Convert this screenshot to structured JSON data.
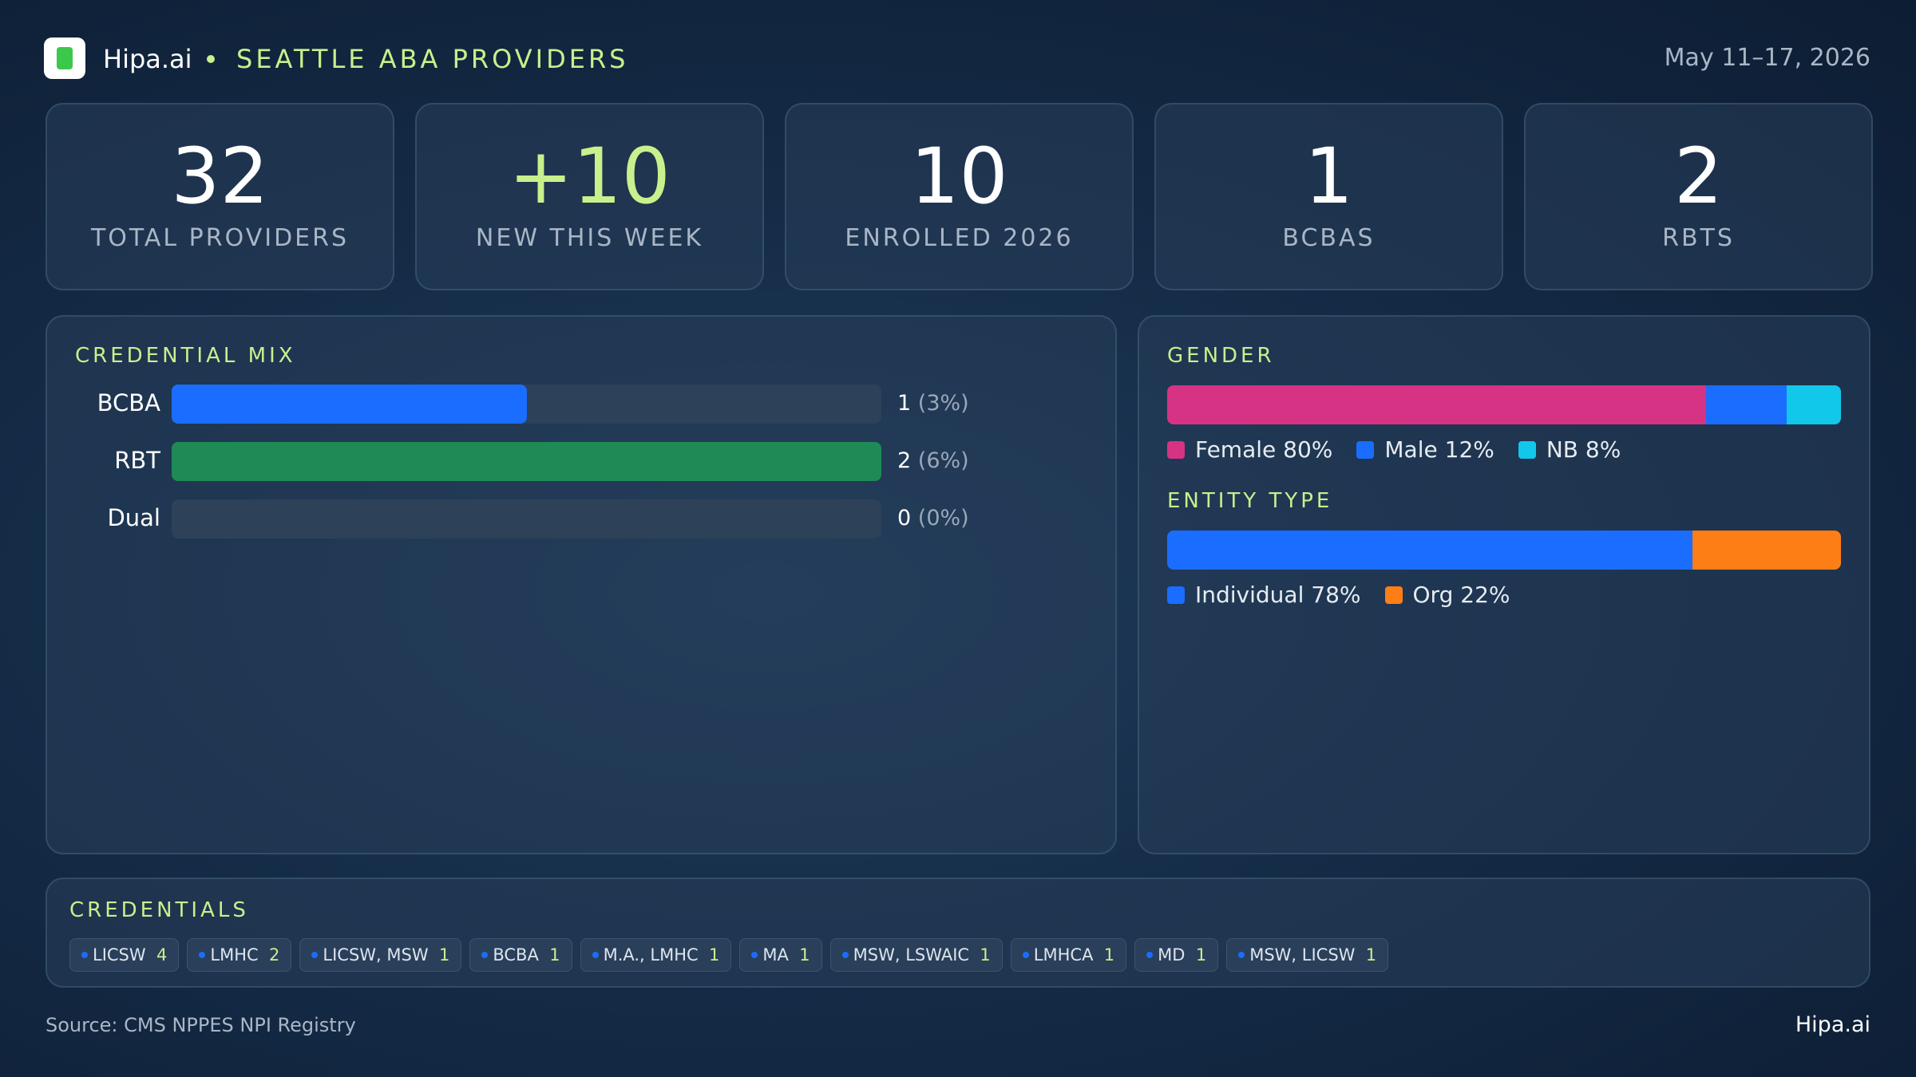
{
  "header": {
    "brand": "Hipa.ai",
    "title": "SEATTLE ABA PROVIDERS",
    "date": "May 11–17, 2026"
  },
  "kpis": [
    {
      "value": "32",
      "label": "TOTAL PROVIDERS"
    },
    {
      "value": "+10",
      "label": "NEW THIS WEEK"
    },
    {
      "value": "10",
      "label": "ENROLLED 2026"
    },
    {
      "value": "1",
      "label": "BCBAS"
    },
    {
      "value": "2",
      "label": "RBTS"
    }
  ],
  "chart_data": [
    {
      "type": "hbar",
      "title": "CREDENTIAL MIX",
      "categories": [
        "BCBA",
        "RBT",
        "Dual"
      ],
      "values": [
        1,
        2,
        0
      ],
      "shares": [
        3,
        6,
        0
      ],
      "share_labels": [
        "(3%)",
        "(6%)",
        "(0%)"
      ],
      "colors": [
        "#1a6dff",
        "#1e8a55",
        "#1a6dff"
      ],
      "xlim": [
        0,
        2
      ]
    },
    {
      "type": "stacked",
      "title": "GENDER",
      "xlim": [
        0,
        100
      ],
      "series": [
        {
          "name": "Female",
          "color": "#d63384",
          "values": [
            80
          ],
          "value_labels": [
            "80%"
          ]
        },
        {
          "name": "Male",
          "color": "#1a6dff",
          "values": [
            12
          ],
          "value_labels": [
            "12%"
          ]
        },
        {
          "name": "NB",
          "color": "#12c8ea",
          "values": [
            8
          ],
          "value_labels": [
            "8%"
          ]
        }
      ]
    },
    {
      "type": "stacked",
      "title": "ENTITY TYPE",
      "xlim": [
        0,
        100
      ],
      "series": [
        {
          "name": "Individual",
          "color": "#1a6dff",
          "values": [
            78
          ],
          "value_labels": [
            "78%"
          ]
        },
        {
          "name": "Org",
          "color": "#fd7e14",
          "values": [
            22
          ],
          "value_labels": [
            "22%"
          ]
        }
      ]
    }
  ],
  "credentials": {
    "title": "CREDENTIALS",
    "items": [
      {
        "label": "LICSW",
        "count": "4"
      },
      {
        "label": "LMHC",
        "count": "2"
      },
      {
        "label": "LICSW, MSW",
        "count": "1"
      },
      {
        "label": "BCBA",
        "count": "1"
      },
      {
        "label": "M.A., LMHC",
        "count": "1"
      },
      {
        "label": "MA",
        "count": "1"
      },
      {
        "label": "MSW, LSWAIC",
        "count": "1"
      },
      {
        "label": "LMHCA",
        "count": "1"
      },
      {
        "label": "MD",
        "count": "1"
      },
      {
        "label": "MSW, LICSW",
        "count": "1"
      }
    ]
  },
  "footer": {
    "source": "Source: CMS NPPES NPI Registry",
    "brand": "Hipa.ai"
  }
}
